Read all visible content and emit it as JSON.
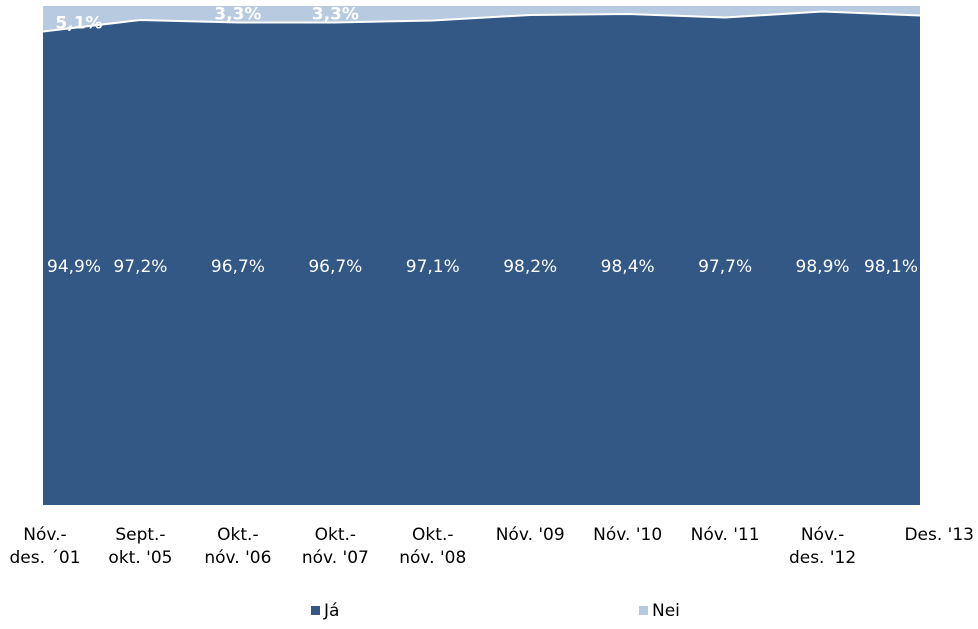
{
  "chart_data": {
    "type": "area",
    "stacked": true,
    "percent_stacked": true,
    "categories": [
      [
        "Nóv.-",
        "des. ´01"
      ],
      [
        "Sept.-",
        "okt. '05"
      ],
      [
        "Okt.-",
        "nóv. '06"
      ],
      [
        "Okt.-",
        "nóv. '07"
      ],
      [
        "Okt.-",
        "nóv. '08"
      ],
      [
        "Nóv. '09"
      ],
      [
        "Nóv. '10"
      ],
      [
        "Nóv. '11"
      ],
      [
        "Nóv.-",
        "des. '12"
      ],
      [
        "Des. '13"
      ]
    ],
    "series": [
      {
        "name": "Já",
        "color": "#335886",
        "values": [
          94.9,
          97.2,
          96.7,
          96.7,
          97.1,
          98.2,
          98.4,
          97.7,
          98.9,
          98.1
        ],
        "labels": [
          "94,9%",
          "97,2%",
          "96,7%",
          "96,7%",
          "97,1%",
          "98,2%",
          "98,4%",
          "97,7%",
          "98,9%",
          "98,1%"
        ]
      },
      {
        "name": "Nei",
        "color": "#b7cae0",
        "values": [
          5.1,
          2.8,
          3.3,
          3.3,
          2.9,
          1.8,
          1.6,
          2.3,
          1.1,
          1.9
        ],
        "labels": [
          "5,1%",
          "",
          "3,3%",
          "3,3%",
          "",
          "",
          "",
          "",
          "",
          ""
        ]
      }
    ],
    "ylim": [
      0,
      100
    ],
    "grid": false,
    "legend_position": "bottom",
    "title": "",
    "xlabel": "",
    "ylabel": ""
  }
}
